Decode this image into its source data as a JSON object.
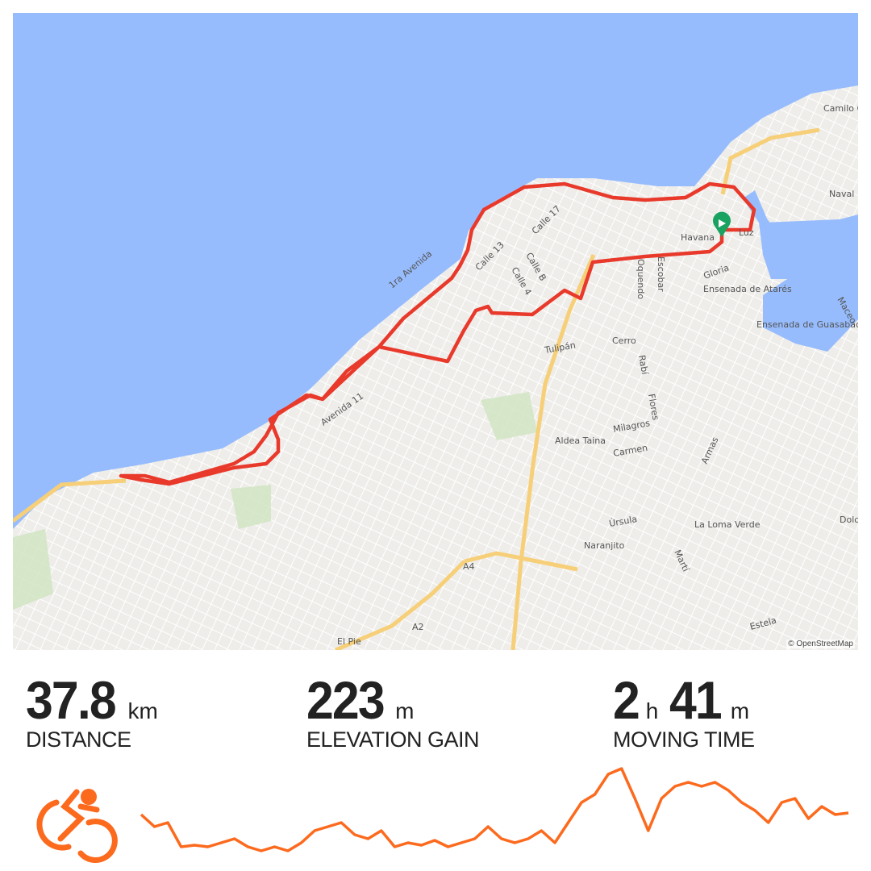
{
  "map": {
    "attribution": "© OpenStreetMap",
    "labels": [
      "Havana",
      "Luz",
      "Gloria",
      "Ensenada de Atarés",
      "Ensenada de Guasabacoa",
      "Naval",
      "Maceo",
      "Cerro",
      "Tulipán",
      "Aldea Taina",
      "Milagros",
      "Carmen",
      "Úrsula",
      "Naranjito",
      "La Loma Verde",
      "Dolores",
      "Estela",
      "El Pie",
      "Calle 13",
      "Calle 17",
      "Calle B",
      "Calle 4",
      "1ra Avenida",
      "Avenida 11",
      "Camilo Cienfuegos (Habana del Este)",
      "A4",
      "A2",
      "Oquendo",
      "Escobar",
      "Rabí",
      "Flores",
      "Armas",
      "Martí"
    ],
    "route_color": "#e8392b",
    "water_color": "#97bcfd",
    "start_marker_color": "#1aa260"
  },
  "stats": [
    {
      "value": "37.8",
      "unit": "km",
      "label": "DISTANCE"
    },
    {
      "value": "223",
      "unit": "m",
      "label": "ELEVATION GAIN"
    },
    {
      "hours": "2",
      "hours_unit": "h",
      "minutes": "41",
      "minutes_unit": "m",
      "label": "MOVING TIME"
    }
  ],
  "activity_icon": "cyclist-icon",
  "accent_color": "#fc6a1e",
  "elevation_profile": [
    50,
    35,
    40,
    10,
    12,
    10,
    15,
    20,
    10,
    5,
    10,
    5,
    15,
    30,
    35,
    40,
    25,
    20,
    30,
    10,
    15,
    12,
    18,
    10,
    15,
    20,
    35,
    20,
    15,
    20,
    30,
    15,
    40,
    65,
    75,
    100,
    107,
    70,
    30,
    70,
    85,
    90,
    85,
    90,
    80,
    65,
    55,
    40,
    65,
    70,
    45,
    60,
    50,
    52
  ]
}
